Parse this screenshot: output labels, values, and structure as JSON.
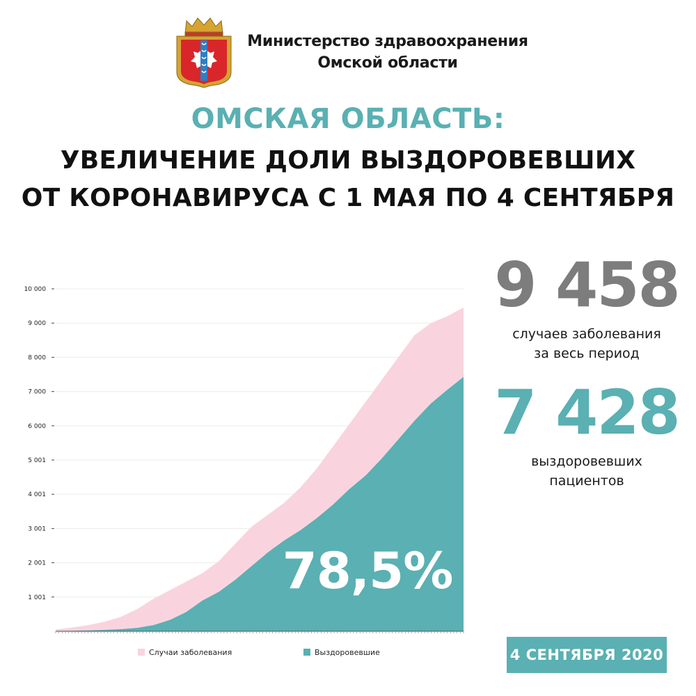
{
  "header": {
    "ministry_line1": "Министерство здравоохранения",
    "ministry_line2": "Омской области"
  },
  "title": {
    "kicker": "ОМСКАЯ ОБЛАСТЬ:",
    "line1": "УВЕЛИЧЕНИЕ ДОЛИ ВЫЗДОРОВЕВШИХ",
    "line2": "ОТ КОРОНАВИРУСА С 1 МАЯ ПО 4 СЕНТЯБРЯ"
  },
  "stats": {
    "cases_value": "9 458",
    "cases_label_1": "случаев заболевания",
    "cases_label_2": "за весь период",
    "recovered_value": "7 428",
    "recovered_label_1": "выздоровевших",
    "recovered_label_2": "пациентов"
  },
  "date_badge": "4 СЕНТЯБРЯ 2020",
  "colors": {
    "teal": "#5ab0b2",
    "pink": "#f9d4df",
    "gray": "#7d7d7d",
    "emblem_red": "#d9262b",
    "emblem_gold": "#d6a431"
  },
  "chart_data": {
    "type": "area",
    "x": [
      1,
      6,
      11,
      16,
      21,
      26,
      31,
      36,
      41,
      46,
      51,
      56,
      61,
      66,
      71,
      76,
      81,
      86,
      91,
      96,
      101,
      106,
      111,
      116,
      121,
      126
    ],
    "ylim": [
      0,
      10000
    ],
    "y_ticks": [
      "1 001",
      "2 001",
      "3 001",
      "4 001",
      "5 001",
      "6 000",
      "7 000",
      "8 000",
      "9 000",
      "10 000"
    ],
    "y_tick_values": [
      1001,
      2001,
      3001,
      4001,
      5001,
      6000,
      7000,
      8000,
      9000,
      10000
    ],
    "annotation": "78,5%",
    "series": [
      {
        "name": "Случаи заболевания",
        "color": "#f9d4df",
        "values": [
          50,
          110,
          180,
          280,
          420,
          650,
          950,
          1200,
          1450,
          1700,
          2050,
          2550,
          3050,
          3400,
          3750,
          4200,
          4750,
          5400,
          6050,
          6700,
          7350,
          8000,
          8650,
          9000,
          9200,
          9458
        ]
      },
      {
        "name": "Выздоровевшие",
        "color": "#5ab0b2",
        "values": [
          10,
          15,
          25,
          40,
          60,
          100,
          180,
          330,
          560,
          900,
          1150,
          1500,
          1900,
          2300,
          2650,
          2950,
          3300,
          3700,
          4150,
          4550,
          5050,
          5600,
          6150,
          6650,
          7050,
          7428
        ]
      }
    ]
  }
}
